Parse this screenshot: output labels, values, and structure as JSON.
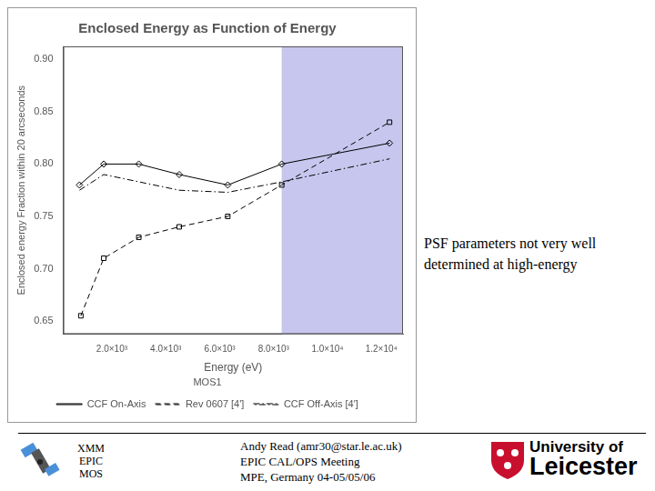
{
  "chart_data": {
    "type": "line",
    "title": "Enclosed Energy as Function of Energy",
    "x_label": "Energy (eV)",
    "y_label": "Enclosed energy Fraction within 20 arcseconds",
    "legend_title": "MOS1",
    "legend": "bottom",
    "grid": false,
    "xlim": [
      200,
      12800
    ],
    "xticks": [
      {
        "value": 2000,
        "label": "2.0×10³"
      },
      {
        "value": 4000,
        "label": "4.0×10³"
      },
      {
        "value": 6000,
        "label": "6.0×10³"
      },
      {
        "value": 8000,
        "label": "8.0×10³"
      },
      {
        "value": 10000,
        "label": "1.0×10⁴"
      },
      {
        "value": 12000,
        "label": "1.2×10⁴"
      }
    ],
    "ylim": [
      0.6375,
      0.9125
    ],
    "yticks": [
      0.65,
      {
        "value": 0.7,
        "label": "0.70"
      },
      0.75,
      {
        "value": 0.8,
        "label": "0.80"
      },
      0.85,
      {
        "value": 0.9,
        "label": "0.90"
      }
    ],
    "highlight_range": [
      8300,
      12800
    ],
    "series": [
      {
        "name": "CCF On-Axis",
        "color": "#000000",
        "marker": "diamond",
        "line_style": "solid",
        "x": [
          800,
          1700,
          3000,
          4500,
          6300,
          8300,
          12300
        ],
        "values": [
          0.78,
          0.8,
          0.8,
          0.79,
          0.78,
          0.8,
          0.82
        ]
      },
      {
        "name": "Rev 0607 [4']",
        "color": "#000000",
        "marker": "square",
        "line_style": "dashed",
        "x": [
          850,
          1700,
          3000,
          4500,
          6300,
          8300,
          12300
        ],
        "values": [
          0.655,
          0.71,
          0.73,
          0.74,
          0.75,
          0.78,
          0.84
        ]
      },
      {
        "name": "CCF Off-Axis [4']",
        "color": "#000000",
        "marker": "none",
        "line_style": "dashdot",
        "x": [
          800,
          1700,
          4500,
          6300,
          8300,
          12300
        ],
        "values": [
          0.775,
          0.79,
          0.775,
          0.773,
          0.783,
          0.805
        ]
      }
    ]
  },
  "slide": {
    "annotation": [
      "PSF parameters not very well",
      "determined at high-energy"
    ],
    "footer_left": [
      "XMM",
      "EPIC",
      "MOS"
    ],
    "footer_center": [
      "Andy Read (amr30@star.le.ac.uk)",
      "EPIC CAL/OPS Meeting",
      "MPE, Germany 04-05/05/06"
    ],
    "footer_right": [
      "University of",
      "Leicester"
    ]
  }
}
